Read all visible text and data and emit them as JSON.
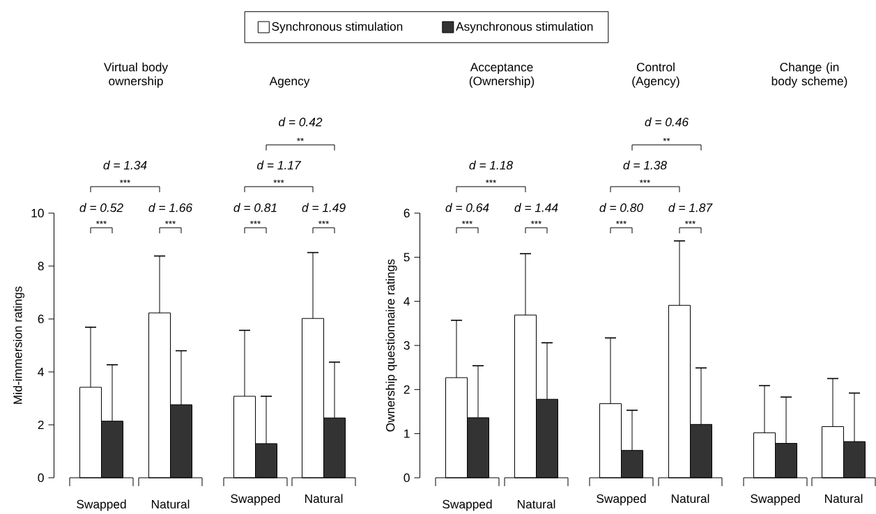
{
  "chart_data": [
    {
      "type": "bar",
      "title": "Virtual body ownership",
      "ylabel": "Mid-immersion ratings",
      "categories": [
        "Swapped",
        "Natural"
      ],
      "series": [
        {
          "name": "Synchronous stimulation",
          "color": "#ffffff",
          "values": [
            3.42,
            6.23
          ],
          "errors": [
            [
              3.42,
              5.69
            ],
            [
              6.23,
              8.38
            ]
          ]
        },
        {
          "name": "Asynchronous stimulation",
          "color": "#333333",
          "values": [
            2.14,
            2.76
          ],
          "errors": [
            [
              2.14,
              4.27
            ],
            [
              2.76,
              4.8
            ]
          ]
        }
      ],
      "ylim": [
        0,
        10
      ],
      "yticks": [
        0,
        2,
        4,
        6,
        8,
        10
      ],
      "legend": "top",
      "annotations": [
        "d = 0.52",
        "***",
        "d = 1.66",
        "***",
        "d = 1.34",
        "***"
      ]
    },
    {
      "type": "bar",
      "title": "Agency",
      "categories": [
        "Swapped",
        "Natural"
      ],
      "series": [
        {
          "color": "#ffffff",
          "values": [
            3.08,
            6.02
          ],
          "errors": [
            [
              3.08,
              5.57
            ],
            [
              6.02,
              8.51
            ]
          ]
        },
        {
          "color": "#333333",
          "values": [
            1.29,
            2.26
          ],
          "errors": [
            [
              1.29,
              3.08
            ],
            [
              2.26,
              4.37
            ]
          ]
        }
      ],
      "ylim": [
        0,
        10
      ],
      "tick_labels": "x",
      "annotations": [
        "d = 0.81",
        "***",
        "d = 1.49",
        "***",
        "d = 1.17",
        "***",
        "d = 0.42",
        "**"
      ]
    },
    {
      "type": "bar",
      "title": "Acceptance (Ownership)",
      "ylabel": "Ownership questionnaire ratings",
      "categories": [
        "Swapped",
        "Natural"
      ],
      "series": [
        {
          "color": "#ffffff",
          "values": [
            2.27,
            3.69
          ],
          "errors": [
            [
              2.27,
              3.57
            ],
            [
              3.69,
              5.08
            ]
          ]
        },
        {
          "color": "#333333",
          "values": [
            1.36,
            1.78
          ],
          "errors": [
            [
              1.36,
              2.54
            ],
            [
              1.78,
              3.06
            ]
          ]
        }
      ],
      "ylim": [
        0,
        6
      ],
      "yticks": [
        0,
        1,
        2,
        3,
        4,
        5,
        6
      ],
      "annotations": [
        "d = 0.64",
        "***",
        "d = 1.44",
        "***",
        "d = 1.18",
        "***"
      ]
    },
    {
      "type": "bar",
      "title": "Control (Agency)",
      "categories": [
        "Swapped",
        "Natural"
      ],
      "series": [
        {
          "color": "#ffffff",
          "values": [
            1.68,
            3.91
          ],
          "errors": [
            [
              1.68,
              3.17
            ],
            [
              3.91,
              5.37
            ]
          ]
        },
        {
          "color": "#333333",
          "values": [
            0.62,
            1.21
          ],
          "errors": [
            [
              0.62,
              1.53
            ],
            [
              1.21,
              2.49
            ]
          ]
        }
      ],
      "ylim": [
        0,
        6
      ],
      "tick_labels": "x",
      "annotations": [
        "d = 0.80",
        "***",
        "d = 1.87",
        "***",
        "d = 1.38",
        "***",
        "d = 0.46",
        "**"
      ]
    },
    {
      "type": "bar",
      "title": "Change (in body scheme)",
      "categories": [
        "Swapped",
        "Natural"
      ],
      "series": [
        {
          "color": "#ffffff",
          "values": [
            1.02,
            1.16
          ],
          "errors": [
            [
              1.02,
              2.09
            ],
            [
              1.16,
              2.25
            ]
          ]
        },
        {
          "color": "#333333",
          "values": [
            0.78,
            0.82
          ],
          "errors": [
            [
              0.78,
              1.83
            ],
            [
              0.82,
              1.92
            ]
          ]
        }
      ],
      "ylim": [
        0,
        6
      ],
      "tick_labels": "x"
    }
  ]
}
